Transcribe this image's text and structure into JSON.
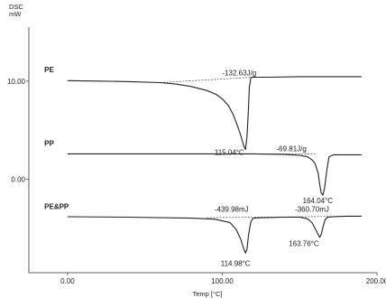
{
  "chart_data": {
    "type": "line",
    "title": "",
    "ylabel": "DSC\nmW",
    "xlabel": "Temp [°C]",
    "xlim": [
      -25,
      200
    ],
    "ylim": [
      -9.5,
      15.5
    ],
    "grid": false,
    "legend": "none",
    "x_ticks": [
      {
        "value": 0,
        "label": "0.00"
      },
      {
        "value": 100,
        "label": "100.00"
      },
      {
        "value": 200,
        "label": "200.00"
      }
    ],
    "y_ticks": [
      {
        "value": 10,
        "label": "10.00"
      },
      {
        "value": 0,
        "label": "0.00"
      }
    ],
    "series": [
      {
        "name": "PE",
        "color": "#222222",
        "x": [
          0,
          20,
          40,
          60,
          70,
          80,
          90,
          96,
          100,
          104,
          107,
          109.5,
          111.5,
          113,
          114,
          115,
          116,
          116.8,
          117.5,
          118.5,
          120,
          130,
          150,
          170,
          190
        ],
        "y": [
          10.05,
          10.0,
          9.95,
          9.85,
          9.7,
          9.45,
          9.05,
          8.65,
          8.2,
          7.5,
          6.6,
          5.6,
          4.7,
          3.9,
          3.35,
          3.05,
          4.4,
          6.8,
          9.4,
          10.35,
          10.4,
          10.4,
          10.45,
          10.45,
          10.45
        ]
      },
      {
        "name": "PP",
        "color": "#222222",
        "x": [
          0,
          40,
          80,
          120,
          140,
          150,
          155,
          158,
          160,
          162,
          163,
          164,
          165,
          166,
          167.5,
          169,
          172,
          180,
          190
        ],
        "y": [
          2.6,
          2.6,
          2.6,
          2.6,
          2.55,
          2.45,
          2.3,
          2.0,
          1.6,
          0.6,
          -0.5,
          -1.4,
          -1.6,
          -1.0,
          0.8,
          2.3,
          2.5,
          2.5,
          2.5
        ],
        "baseline_extent": [
          100,
          160
        ]
      },
      {
        "name": "PE&PP",
        "color": "#222222",
        "x": [
          0,
          40,
          80,
          95,
          105,
          109,
          112,
          113.5,
          115,
          116,
          117,
          118.5,
          120,
          125,
          140,
          150,
          155,
          158,
          160,
          162,
          163,
          164,
          165,
          166.5,
          168,
          172,
          180,
          190
        ],
        "y": [
          -3.8,
          -3.85,
          -3.95,
          -4.05,
          -4.4,
          -5.1,
          -6.1,
          -6.9,
          -7.5,
          -7.1,
          -5.6,
          -4.3,
          -3.95,
          -3.9,
          -3.85,
          -3.85,
          -4.0,
          -4.4,
          -5.0,
          -5.6,
          -5.9,
          -5.6,
          -4.9,
          -4.1,
          -3.85,
          -3.8,
          -3.75,
          -3.75
        ],
        "baseline_extent": [
          90,
          185
        ]
      }
    ],
    "annotations": [
      {
        "text": "-132.63J/g",
        "x": 100,
        "y": 10.6
      },
      {
        "text": "115.04°C",
        "x": 95,
        "y": 2.5
      },
      {
        "text": "-69.81J/g",
        "x": 135,
        "y": 2.85
      },
      {
        "text": "164.04°C",
        "x": 152,
        "y": -2.4
      },
      {
        "text": "-439.98mJ",
        "x": 95,
        "y": -3.3
      },
      {
        "text": "-360.70mJ",
        "x": 147,
        "y": -3.3
      },
      {
        "text": "163.76°C",
        "x": 143,
        "y": -6.8
      },
      {
        "text": "114.98°C",
        "x": 99,
        "y": -8.8
      }
    ],
    "series_labels": [
      {
        "text": "PE",
        "x": -15,
        "y": 10.9
      },
      {
        "text": "PP",
        "x": -15,
        "y": 3.4
      },
      {
        "text": "PE&PP",
        "x": -15,
        "y": -3.0
      }
    ]
  }
}
